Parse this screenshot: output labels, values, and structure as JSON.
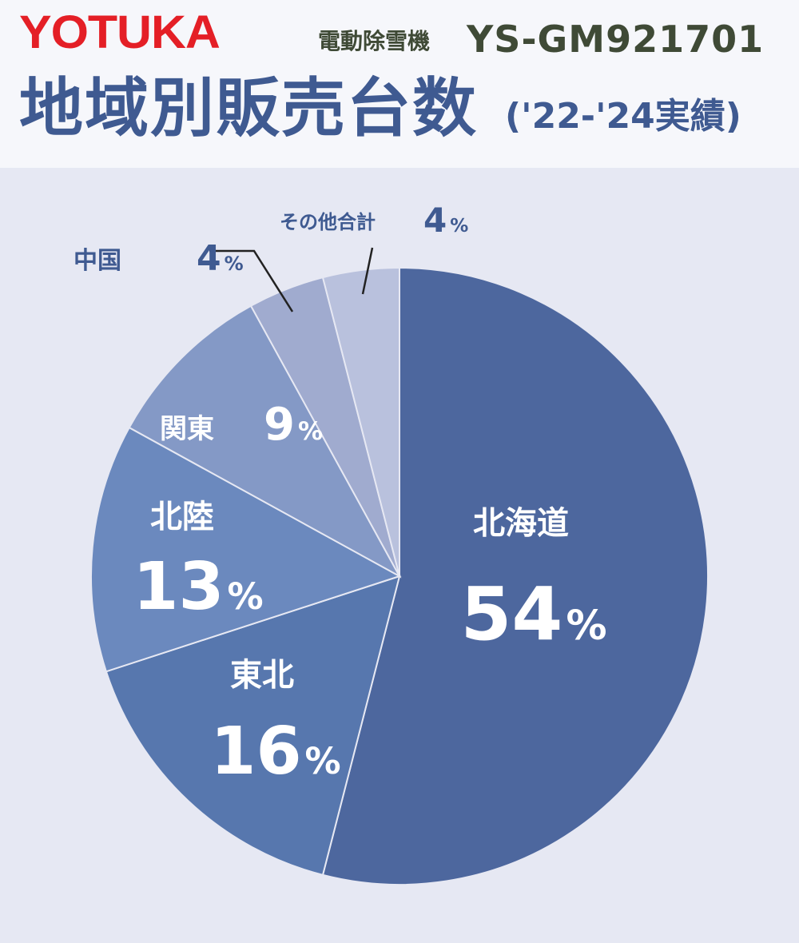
{
  "header": {
    "brand": "YOTUKA",
    "model_label": "電動除雪機",
    "model_code": "YS-GM921701",
    "title": "地域別販売台数",
    "subtitle": "('22-'24実績)"
  },
  "chart_data": {
    "type": "pie",
    "title": "地域別販売台数",
    "subtitle": "('22-'24実績)",
    "unit": "%",
    "slices": [
      {
        "label": "北海道",
        "value": 54,
        "color": "#4d679e"
      },
      {
        "label": "東北",
        "value": 16,
        "color": "#5777ae"
      },
      {
        "label": "北陸",
        "value": 13,
        "color": "#6b89be"
      },
      {
        "label": "関東",
        "value": 9,
        "color": "#8499c6"
      },
      {
        "label": "中国",
        "value": 4,
        "color": "#a0abcf"
      },
      {
        "label": "その他合計",
        "value": 4,
        "color": "#b9c1dd"
      }
    ]
  }
}
